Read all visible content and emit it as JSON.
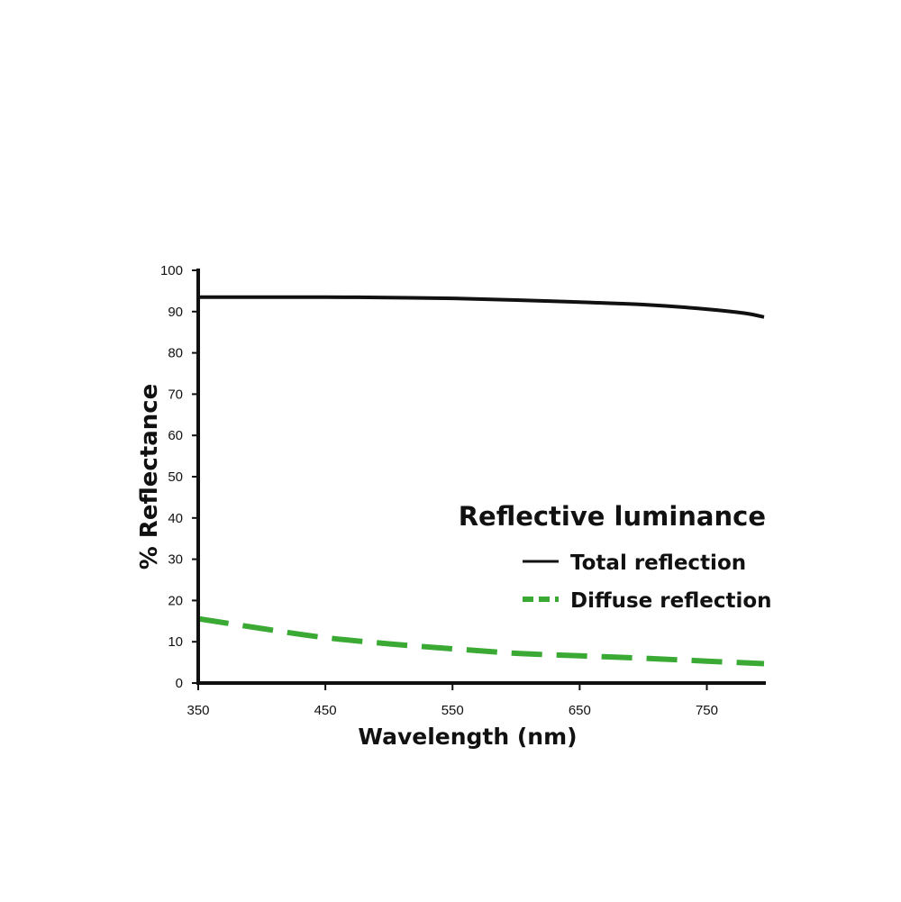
{
  "chart_data": {
    "type": "line",
    "title": "",
    "xlabel": "Wavelength (nm)",
    "ylabel": "% Reflectance",
    "xlim": [
      350,
      795
    ],
    "ylim": [
      0,
      100
    ],
    "x_ticks": [
      350,
      450,
      550,
      650,
      750
    ],
    "y_ticks": [
      0,
      10,
      20,
      30,
      40,
      50,
      60,
      70,
      80,
      90,
      100
    ],
    "grid": false,
    "legend": {
      "title": "Reflective luminance",
      "placement": "center-right"
    },
    "series": [
      {
        "name": "Total reflection",
        "style": "solid",
        "color": "#111111",
        "x": [
          350,
          400,
          450,
          500,
          550,
          600,
          650,
          700,
          750,
          780,
          795
        ],
        "y": [
          93.5,
          93.5,
          93.5,
          93.4,
          93.2,
          92.8,
          92.3,
          91.7,
          90.6,
          89.6,
          88.7
        ]
      },
      {
        "name": "Diffuse reflection",
        "style": "dashed",
        "color": "#3aaa35",
        "x": [
          350,
          400,
          450,
          500,
          550,
          600,
          650,
          700,
          750,
          795
        ],
        "y": [
          15.6,
          13.2,
          11.0,
          9.5,
          8.3,
          7.2,
          6.6,
          6.0,
          5.3,
          4.7
        ]
      }
    ]
  }
}
